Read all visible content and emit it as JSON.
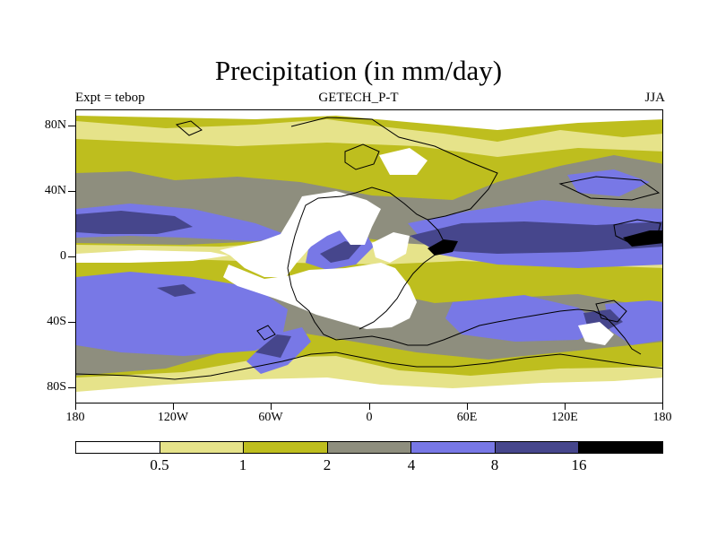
{
  "title": "Precipitation (in mm/day)",
  "subtitle_left": "Expt = tebop",
  "subtitle_center": "GETECH_P-T",
  "subtitle_right": "JJA",
  "lat_labels": [
    "80N",
    "40N",
    "0",
    "40S",
    "80S"
  ],
  "lon_labels": [
    "180",
    "120W",
    "60W",
    "0",
    "60E",
    "120E",
    "180"
  ],
  "legend": {
    "colors": [
      "#ffffff",
      "#e6e38a",
      "#bebe1e",
      "#8e8e7e",
      "#7878e6",
      "#46468c",
      "#000000"
    ],
    "thresholds": [
      "0.5",
      "1",
      "2",
      "4",
      "8",
      "16"
    ]
  },
  "colors": {
    "none": "#ffffff",
    "low": "#e6e38a",
    "mid": "#bebe1e",
    "grey": "#8e8e7e",
    "blue": "#7878e6",
    "dark": "#46468c",
    "black": "#000000",
    "coast": "#000000"
  }
}
